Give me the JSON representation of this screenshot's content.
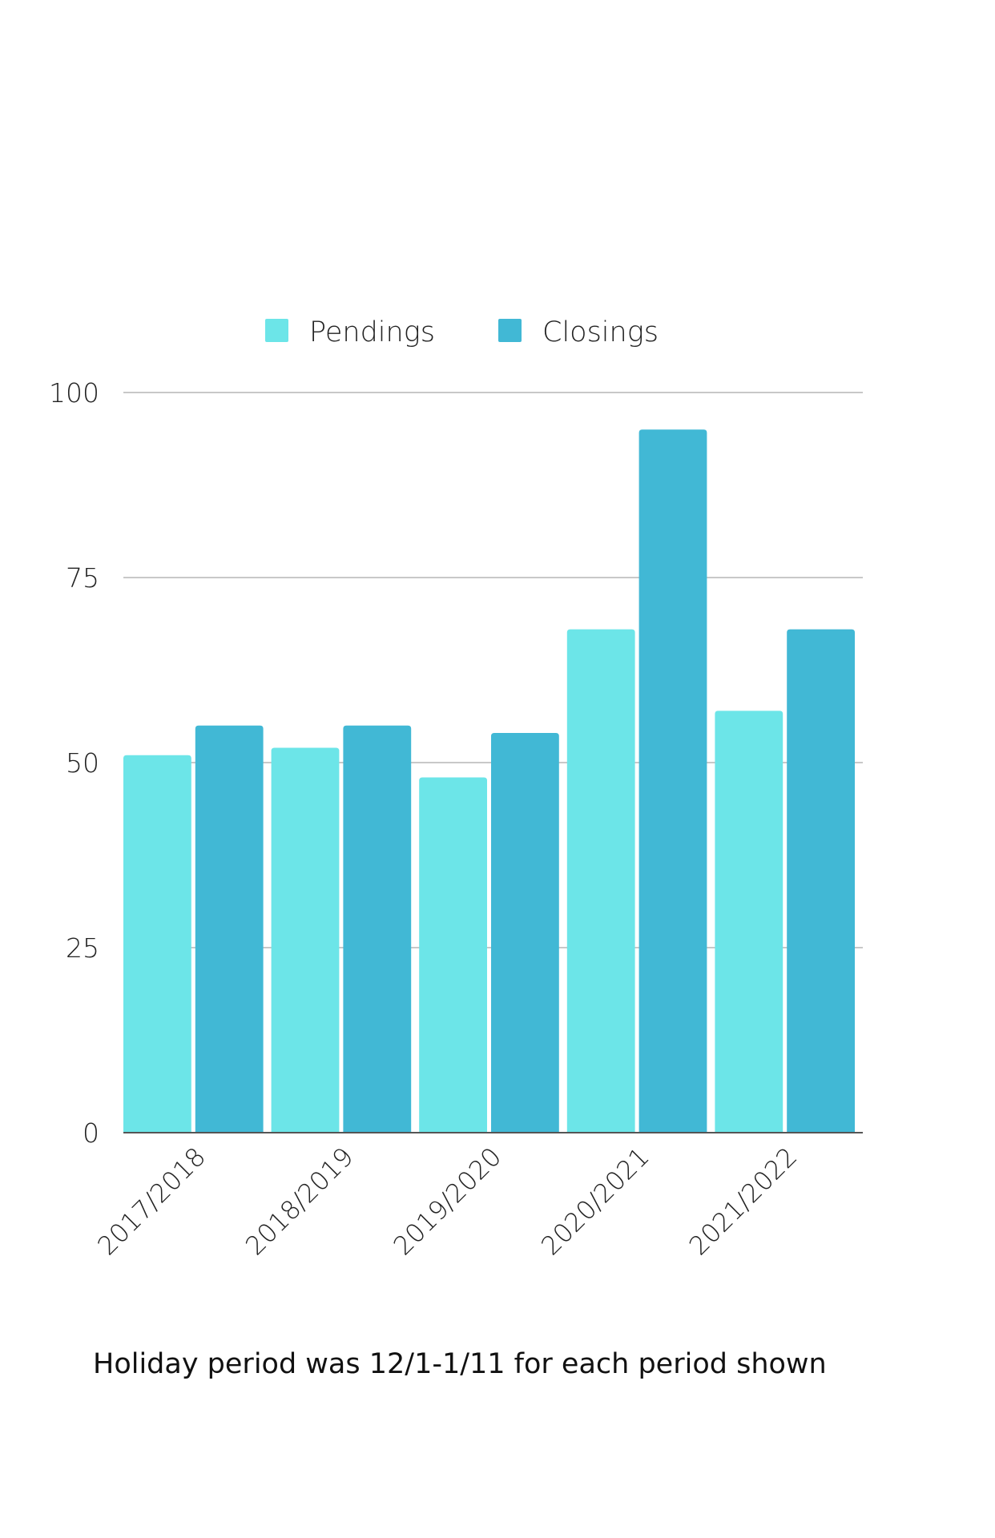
{
  "chart_data": {
    "type": "bar",
    "categories": [
      "2017/2018",
      "2018/2019",
      "2019/2020",
      "2020/2021",
      "2021/2022"
    ],
    "series": [
      {
        "name": "Pendings",
        "values": [
          51,
          52,
          48,
          68,
          57
        ],
        "color": "#6ce5e8"
      },
      {
        "name": "Closings",
        "values": [
          55,
          55,
          54,
          95,
          68
        ],
        "color": "#41b8d5"
      }
    ],
    "ylim": [
      0,
      100
    ],
    "yticks": [
      0,
      25,
      50,
      75,
      100
    ],
    "grid": true,
    "legend_position": "top-center",
    "xlabel": "",
    "ylabel": "",
    "title": ""
  },
  "caption": "Holiday period was 12/1-1/11 for each period shown"
}
